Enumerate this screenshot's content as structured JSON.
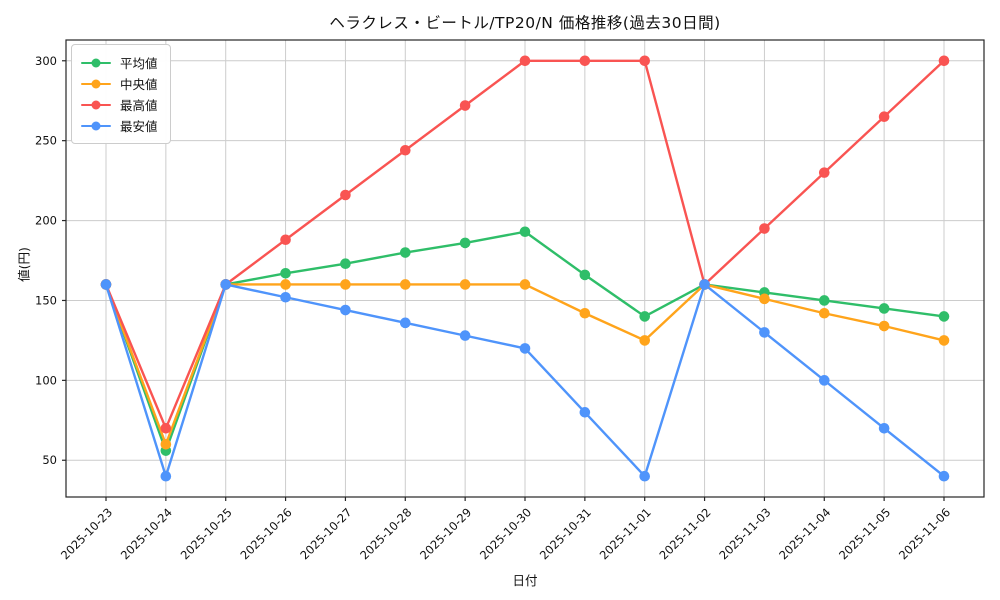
{
  "chart_data": {
    "type": "line",
    "title": "ヘラクレス・ビートル/TP20/N 価格推移(過去30日間)",
    "xlabel": "日付",
    "ylabel": "値(円)",
    "categories": [
      "2025-10-23",
      "2025-10-24",
      "2025-10-25",
      "2025-10-26",
      "2025-10-27",
      "2025-10-28",
      "2025-10-29",
      "2025-10-30",
      "2025-10-31",
      "2025-11-01",
      "2025-11-02",
      "2025-11-03",
      "2025-11-04",
      "2025-11-05",
      "2025-11-06"
    ],
    "series": [
      {
        "key": "average",
        "name": "平均値",
        "color": "#2fbe69",
        "values": [
          160,
          56,
          160,
          167,
          173,
          180,
          186,
          193,
          166,
          140,
          160,
          155,
          150,
          145,
          140
        ]
      },
      {
        "key": "median",
        "name": "中央値",
        "color": "#ffa41b",
        "values": [
          160,
          60,
          160,
          160,
          160,
          160,
          160,
          160,
          142,
          125,
          160,
          151,
          142,
          134,
          125
        ]
      },
      {
        "key": "max",
        "name": "最高値",
        "color": "#f95452",
        "values": [
          160,
          70,
          160,
          188,
          216,
          244,
          272,
          300,
          300,
          300,
          160,
          195,
          230,
          265,
          300
        ]
      },
      {
        "key": "min",
        "name": "最安値",
        "color": "#4f94fb",
        "values": [
          160,
          40,
          160,
          152,
          144,
          136,
          128,
          120,
          80,
          40,
          160,
          130,
          100,
          70,
          40
        ]
      }
    ],
    "yticks": [
      50,
      100,
      150,
      200,
      250,
      300
    ],
    "ylim": [
      27,
      313
    ],
    "grid": true,
    "grid_color": "#cccccc",
    "spine_color": "#262626",
    "legend_position": "upper-left"
  }
}
